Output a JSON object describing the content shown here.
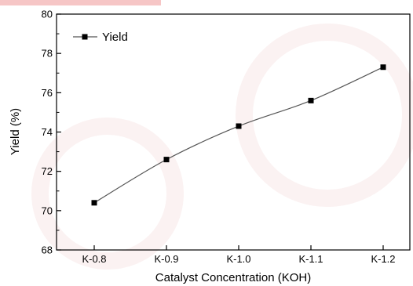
{
  "chart_data": {
    "type": "line",
    "categories": [
      "K-0.8",
      "K-0.9",
      "K-1.0",
      "K-1.1",
      "K-1.2"
    ],
    "series": [
      {
        "name": "Yield",
        "values": [
          70.4,
          72.6,
          74.3,
          75.6,
          77.3
        ]
      }
    ],
    "xlabel": "Catalyst Concentration (KOH)",
    "ylabel": "Yield (%)",
    "ylim": [
      68,
      80
    ],
    "yticks": [
      "68",
      "70",
      "72",
      "74",
      "76",
      "78",
      "80"
    ],
    "legend": "top-left",
    "grid": false,
    "line_color": "#555555",
    "marker_color": "#000000"
  }
}
